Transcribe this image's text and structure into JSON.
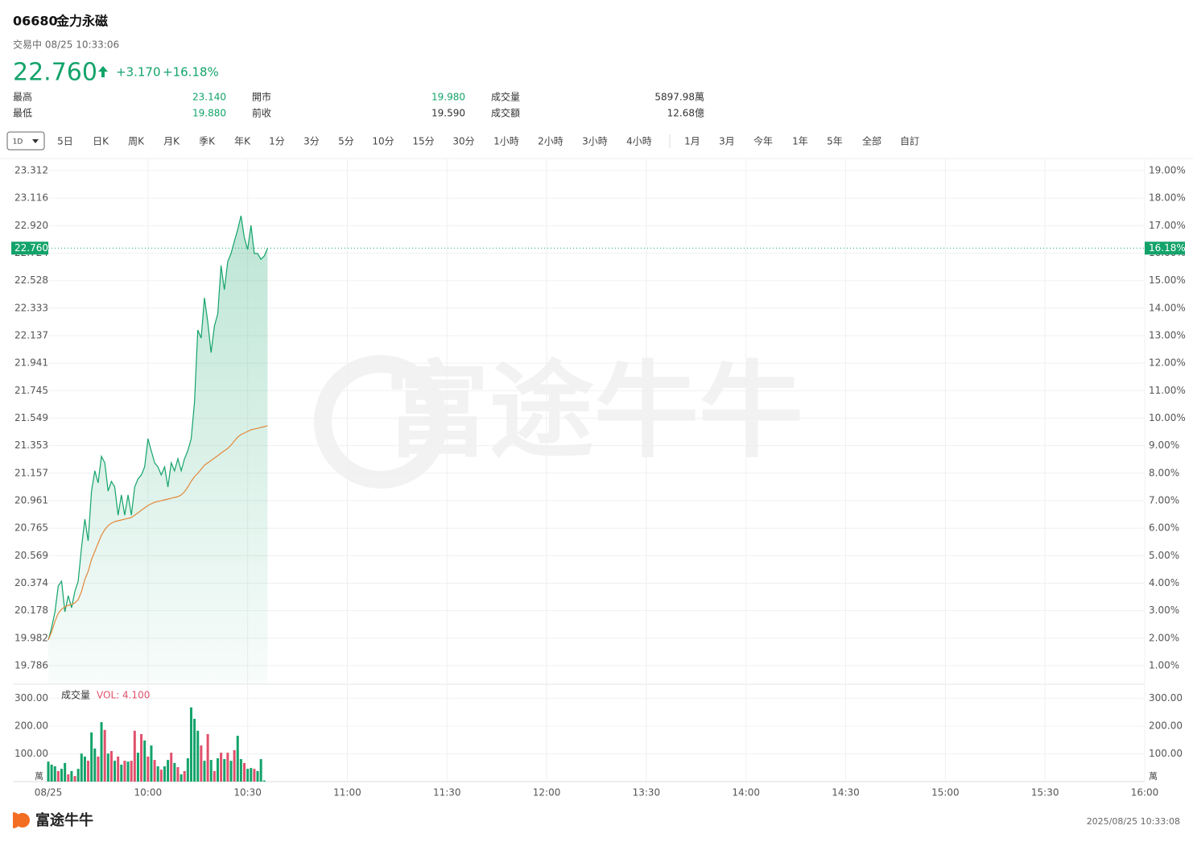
{
  "header": {
    "code": "06680",
    "name": "金力永磁",
    "status": "交易中 08/25 10:33:06",
    "price": "22.760",
    "change": "+3.170",
    "change_pct": "+16.18%"
  },
  "stats": [
    {
      "label": "最高",
      "value": "23.140"
    },
    {
      "label": "開市",
      "value": "19.980"
    },
    {
      "label": "成交量",
      "value": "5897.98萬"
    },
    {
      "label": "最低",
      "value": "19.880"
    },
    {
      "label": "前收",
      "value": "19.590"
    },
    {
      "label": "成交額",
      "value": "12.68億"
    }
  ],
  "tabs": [
    "1D",
    "5日",
    "日K",
    "周K",
    "月K",
    "季K",
    "年K",
    "1分",
    "3分",
    "5分",
    "10分",
    "15分",
    "30分",
    "1小時",
    "2小時",
    "3小時",
    "4小時",
    "1月",
    "3月",
    "今年",
    "1年",
    "5年",
    "全部",
    "自訂"
  ],
  "watermark": "富途牛牛",
  "chart_data": [
    {
      "type": "line",
      "xlim": [
        0,
        330
      ],
      "xticks": [
        {
          "value": 0,
          "label": "08/25"
        },
        {
          "value": 30,
          "label": "10:00"
        },
        {
          "value": 60,
          "label": "10:30"
        },
        {
          "value": 90,
          "label": "11:00"
        },
        {
          "value": 120,
          "label": "11:30"
        },
        {
          "value": 150,
          "label": "12:00"
        },
        {
          "value": 180,
          "label": "13:30"
        },
        {
          "value": 210,
          "label": "14:00"
        },
        {
          "value": 240,
          "label": "14:30"
        },
        {
          "value": 270,
          "label": "15:00"
        },
        {
          "value": 300,
          "label": "15:30"
        },
        {
          "value": 330,
          "label": "16:00"
        }
      ],
      "ylim": [
        19.786,
        23.312
      ],
      "yticks": [
        {
          "value": 23.312,
          "label": "23.312"
        },
        {
          "value": 23.116,
          "label": "23.116"
        },
        {
          "value": 22.92,
          "label": "22.920"
        },
        {
          "value": 22.724,
          "label": "22.724"
        },
        {
          "value": 22.528,
          "label": "22.528"
        },
        {
          "value": 22.333,
          "label": "22.333"
        },
        {
          "value": 22.137,
          "label": "22.137"
        },
        {
          "value": 21.941,
          "label": "21.941"
        },
        {
          "value": 21.745,
          "label": "21.745"
        },
        {
          "value": 21.549,
          "label": "21.549"
        },
        {
          "value": 21.353,
          "label": "21.353"
        },
        {
          "value": 21.157,
          "label": "21.157"
        },
        {
          "value": 20.961,
          "label": "20.961"
        },
        {
          "value": 20.765,
          "label": "20.765"
        },
        {
          "value": 20.569,
          "label": "20.569"
        },
        {
          "value": 20.374,
          "label": "20.374"
        },
        {
          "value": 20.178,
          "label": "20.178"
        },
        {
          "value": 19.982,
          "label": "19.982"
        },
        {
          "value": 19.786,
          "label": "19.786"
        }
      ],
      "y2lim": [
        1,
        19
      ],
      "y2ticks": [
        {
          "value": 19,
          "label": "19.00%"
        },
        {
          "value": 18,
          "label": "18.00%"
        },
        {
          "value": 17,
          "label": "17.00%"
        },
        {
          "value": 16,
          "label": "16.00%"
        },
        {
          "value": 15,
          "label": "15.00%"
        },
        {
          "value": 14,
          "label": "14.00%"
        },
        {
          "value": 13,
          "label": "13.00%"
        },
        {
          "value": 12,
          "label": "12.00%"
        },
        {
          "value": 11,
          "label": "11.00%"
        },
        {
          "value": 10,
          "label": "10.00%"
        },
        {
          "value": 9,
          "label": "9.00%"
        },
        {
          "value": 8,
          "label": "8.00%"
        },
        {
          "value": 7,
          "label": "7.00%"
        },
        {
          "value": 6,
          "label": "6.00%"
        },
        {
          "value": 5,
          "label": "5.00%"
        },
        {
          "value": 4,
          "label": "4.00%"
        },
        {
          "value": 3,
          "label": "3.00%"
        },
        {
          "value": 2,
          "label": "2.00%"
        },
        {
          "value": 1,
          "label": "1.00%"
        }
      ],
      "last": {
        "value": 22.76,
        "label": "22.760",
        "pct": "16.18%"
      },
      "grid": true,
      "series": [
        {
          "color": "#13a36a",
          "values": [
            19.97,
            20.056,
            20.17,
            20.354,
            20.388,
            20.17,
            20.285,
            20.199,
            20.314,
            20.388,
            20.629,
            20.83,
            20.675,
            21.03,
            21.174,
            21.088,
            21.277,
            21.231,
            21.03,
            21.099,
            21.059,
            20.858,
            21.002,
            20.858,
            21.002,
            20.858,
            21.059,
            21.116,
            21.145,
            21.202,
            21.403,
            21.317,
            21.231,
            21.202,
            21.145,
            21.202,
            21.059,
            21.231,
            21.174,
            21.26,
            21.174,
            21.26,
            21.317,
            21.403,
            21.661,
            22.177,
            22.12,
            22.406,
            22.234,
            22.016,
            22.206,
            22.292,
            22.636,
            22.464,
            22.664,
            22.722,
            22.808,
            22.893,
            22.991,
            22.836,
            22.75,
            22.922,
            22.722,
            22.722,
            22.681,
            22.704,
            22.76
          ]
        },
        {
          "color": "#e2883a",
          "values": [
            19.97,
            20.027,
            20.102,
            20.159,
            20.188,
            20.205,
            20.216,
            20.222,
            20.233,
            20.256,
            20.314,
            20.4,
            20.457,
            20.543,
            20.6,
            20.658,
            20.715,
            20.755,
            20.784,
            20.801,
            20.812,
            20.818,
            20.824,
            20.83,
            20.835,
            20.841,
            20.858,
            20.875,
            20.893,
            20.91,
            20.927,
            20.939,
            20.95,
            20.956,
            20.961,
            20.967,
            20.973,
            20.979,
            20.984,
            20.99,
            21.002,
            21.025,
            21.059,
            21.099,
            21.133,
            21.156,
            21.185,
            21.214,
            21.231,
            21.248,
            21.265,
            21.282,
            21.3,
            21.317,
            21.334,
            21.357,
            21.386,
            21.414,
            21.432,
            21.443,
            21.455,
            21.466,
            21.472,
            21.477,
            21.483,
            21.489,
            21.495
          ]
        }
      ]
    },
    {
      "type": "bar",
      "title": "成交量",
      "subtitle": "VOL: 4.100",
      "ylabel": "萬",
      "xlim": [
        0,
        330
      ],
      "ylim": [
        0,
        336
      ],
      "yticks": [
        {
          "value": 300,
          "label": "300.00"
        },
        {
          "value": 200,
          "label": "200.00"
        },
        {
          "value": 100,
          "label": "100.00"
        }
      ],
      "values": [
        72,
        61,
        55,
        38,
        46,
        67,
        26,
        38,
        20,
        46,
        101,
        90,
        75,
        177,
        119,
        90,
        214,
        186,
        101,
        110,
        75,
        90,
        61,
        75,
        72,
        75,
        183,
        104,
        171,
        148,
        90,
        130,
        78,
        55,
        43,
        55,
        78,
        104,
        67,
        52,
        26,
        38,
        84,
        267,
        226,
        183,
        130,
        75,
        171,
        78,
        38,
        84,
        104,
        81,
        104,
        75,
        113,
        165,
        81,
        67,
        46,
        49,
        46,
        38,
        81,
        4.1
      ],
      "colors": [
        "#13a36a",
        "#13a36a",
        "#13a36a",
        "#e0506b",
        "#13a36a",
        "#13a36a",
        "#e0506b",
        "#13a36a",
        "#e0506b",
        "#13a36a",
        "#13a36a",
        "#13a36a",
        "#e0506b",
        "#13a36a",
        "#13a36a",
        "#e0506b",
        "#13a36a",
        "#e0506b",
        "#13a36a",
        "#e0506b",
        "#13a36a",
        "#e0506b",
        "#13a36a",
        "#e0506b",
        "#13a36a",
        "#e0506b",
        "#e0506b",
        "#13a36a",
        "#e0506b",
        "#13a36a",
        "#e0506b",
        "#13a36a",
        "#e0506b",
        "#13a36a",
        "#e0506b",
        "#13a36a",
        "#13a36a",
        "#e0506b",
        "#13a36a",
        "#e0506b",
        "#13a36a",
        "#e0506b",
        "#13a36a",
        "#13a36a",
        "#13a36a",
        "#13a36a",
        "#e0506b",
        "#13a36a",
        "#e0506b",
        "#13a36a",
        "#e0506b",
        "#13a36a",
        "#e0506b",
        "#13a36a",
        "#e0506b",
        "#13a36a",
        "#e0506b",
        "#13a36a",
        "#13a36a",
        "#e0506b",
        "#13a36a",
        "#13a36a",
        "#e0506b",
        "#13a36a",
        "#13a36a",
        "#13a36a"
      ]
    }
  ],
  "footer": {
    "logo": "富途牛牛",
    "time": "2025/08/25 10:33:08"
  }
}
